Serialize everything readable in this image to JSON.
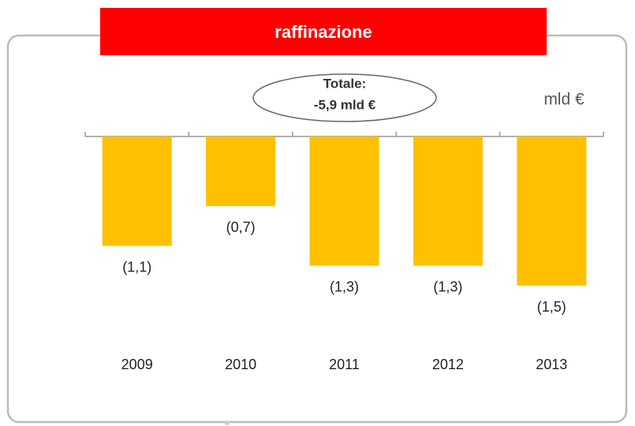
{
  "chart_data": {
    "type": "bar",
    "title": "raffinazione",
    "annotation": [
      "Totale:",
      "-5,9 mld €"
    ],
    "unit": "mld €",
    "categories": [
      "2009",
      "2010",
      "2011",
      "2012",
      "2013"
    ],
    "values": [
      -1.1,
      -0.7,
      -1.3,
      -1.3,
      -1.5
    ],
    "value_labels": [
      "(1,1)",
      "(0,7)",
      "(1,3)",
      "(1,3)",
      "(1,5)"
    ],
    "color": "#ffc000"
  }
}
